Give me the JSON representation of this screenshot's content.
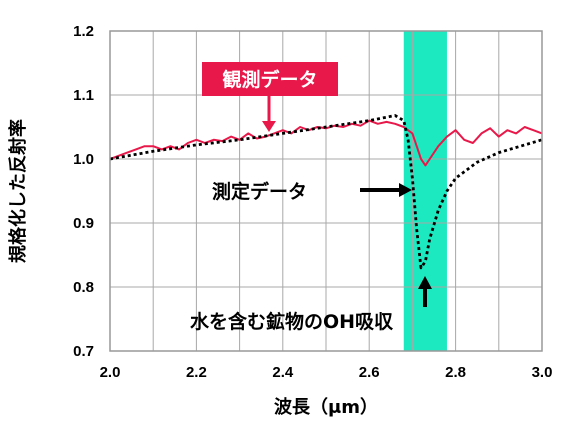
{
  "chart_data": {
    "type": "line",
    "xlabel": "波長（μm）",
    "ylabel": "規格化した反射率",
    "xlim": [
      2.0,
      3.0
    ],
    "ylim": [
      0.7,
      1.2
    ],
    "x_ticks": [
      "2.0",
      "2.2",
      "2.4",
      "2.6",
      "2.8",
      "3.0"
    ],
    "y_ticks": [
      "0.7",
      "0.8",
      "0.9",
      "1.0",
      "1.1",
      "1.2"
    ],
    "grid": true,
    "highlight_band": {
      "x_range": [
        2.68,
        2.78
      ],
      "color": "#1de9c1"
    },
    "series": [
      {
        "name": "観測データ",
        "color": "#e8194a",
        "style": "solid",
        "x": [
          2.0,
          2.02,
          2.04,
          2.06,
          2.08,
          2.1,
          2.12,
          2.14,
          2.16,
          2.18,
          2.2,
          2.22,
          2.24,
          2.26,
          2.28,
          2.3,
          2.32,
          2.34,
          2.36,
          2.38,
          2.4,
          2.42,
          2.44,
          2.46,
          2.48,
          2.5,
          2.52,
          2.54,
          2.56,
          2.58,
          2.6,
          2.62,
          2.64,
          2.66,
          2.68,
          2.7,
          2.71,
          2.72,
          2.73,
          2.74,
          2.76,
          2.78,
          2.8,
          2.82,
          2.84,
          2.86,
          2.88,
          2.9,
          2.92,
          2.94,
          2.96,
          2.98,
          3.0
        ],
        "values": [
          1.0,
          1.005,
          1.01,
          1.015,
          1.02,
          1.02,
          1.015,
          1.02,
          1.015,
          1.025,
          1.03,
          1.025,
          1.03,
          1.028,
          1.035,
          1.03,
          1.04,
          1.032,
          1.035,
          1.04,
          1.045,
          1.04,
          1.05,
          1.045,
          1.05,
          1.048,
          1.052,
          1.05,
          1.055,
          1.052,
          1.06,
          1.055,
          1.058,
          1.055,
          1.05,
          1.04,
          1.02,
          1.0,
          0.99,
          1.0,
          1.02,
          1.035,
          1.045,
          1.03,
          1.025,
          1.04,
          1.048,
          1.035,
          1.045,
          1.04,
          1.05,
          1.045,
          1.04
        ]
      },
      {
        "name": "測定データ",
        "color": "#000000",
        "style": "dotted",
        "x": [
          2.0,
          2.1,
          2.2,
          2.3,
          2.4,
          2.5,
          2.6,
          2.66,
          2.68,
          2.69,
          2.7,
          2.71,
          2.72,
          2.73,
          2.74,
          2.76,
          2.78,
          2.8,
          2.85,
          2.9,
          2.95,
          3.0
        ],
        "values": [
          1.0,
          1.012,
          1.022,
          1.03,
          1.04,
          1.05,
          1.06,
          1.068,
          1.06,
          1.03,
          0.97,
          0.89,
          0.83,
          0.84,
          0.875,
          0.92,
          0.95,
          0.97,
          0.995,
          1.01,
          1.02,
          1.03
        ]
      }
    ],
    "annotations": {
      "observed_label": "観測データ",
      "measured_label": "測定データ",
      "band_label": "水を含む鉱物のOH吸収"
    }
  }
}
